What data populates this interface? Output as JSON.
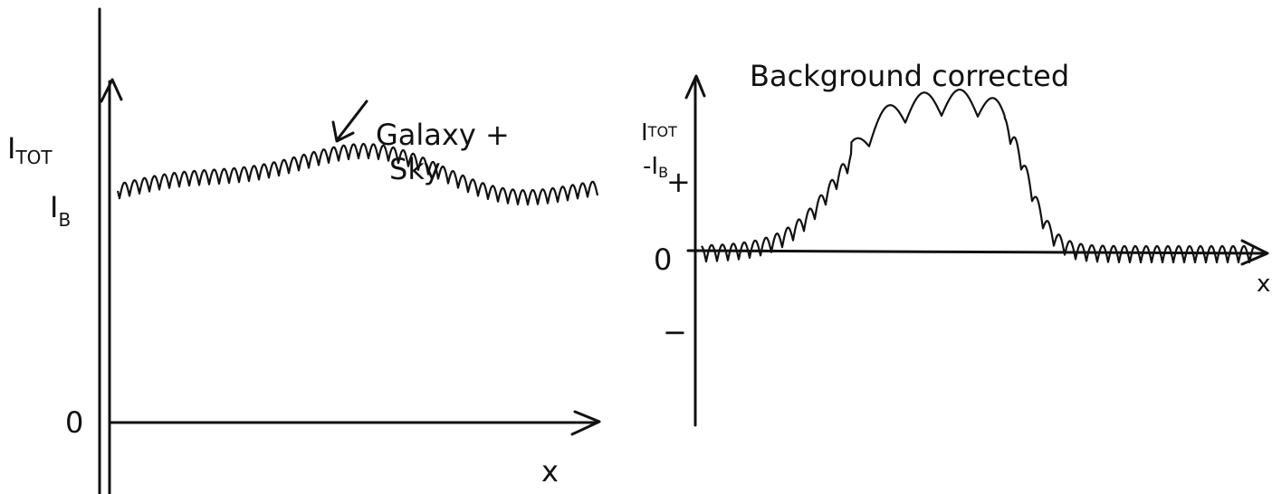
{
  "left_panel": {
    "y_label": {
      "symbol": "I",
      "subscript": "TOT"
    },
    "baseline_label": {
      "symbol": "I",
      "subscript": "B"
    },
    "origin_label": "0",
    "x_label": "x",
    "annotation": [
      "Galaxy +",
      "Sky"
    ]
  },
  "right_panel": {
    "title": "Background corrected",
    "y_label": {
      "symbol": "I",
      "subscript": "TOT",
      "minus_symbol": "-I",
      "minus_subscript": "B"
    },
    "plus_label": "+",
    "origin_label": "0",
    "minus_label": "−",
    "x_label": "x"
  }
}
